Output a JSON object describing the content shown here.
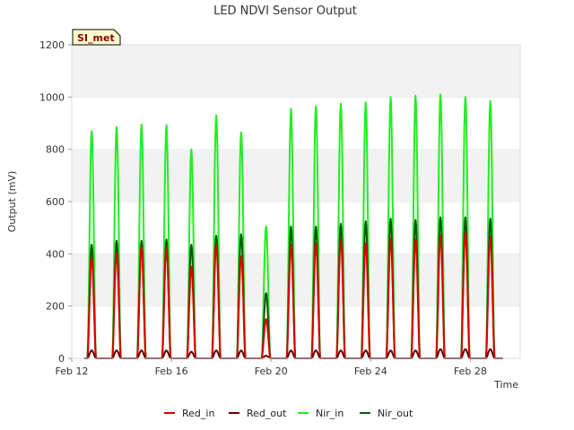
{
  "chart_data": {
    "type": "line",
    "title": "LED NDVI Sensor Output",
    "xlabel": "Time",
    "ylabel": "Output (mV)",
    "site_tag": "SI_met",
    "xlim": [
      12,
      30
    ],
    "ylim": [
      0,
      1200
    ],
    "x_ticks": [
      {
        "value": 12,
        "label": "Feb 12"
      },
      {
        "value": 16,
        "label": "Feb 16"
      },
      {
        "value": 20,
        "label": "Feb 20"
      },
      {
        "value": 24,
        "label": "Feb 24"
      },
      {
        "value": 28,
        "label": "Feb 28"
      }
    ],
    "y_ticks": [
      {
        "value": 0,
        "label": "0"
      },
      {
        "value": 200,
        "label": "200"
      },
      {
        "value": 400,
        "label": "400"
      },
      {
        "value": 600,
        "label": "600"
      },
      {
        "value": 800,
        "label": "800"
      },
      {
        "value": 1000,
        "label": "1000"
      },
      {
        "value": 1200,
        "label": "1200"
      }
    ],
    "colors": {
      "Red_in": "#dd0000",
      "Red_out": "#660000",
      "Nir_in": "#22ee22",
      "Nir_out": "#115511"
    },
    "series": [
      {
        "name": "Nir_in",
        "color": "#22ee22",
        "daily_peaks": [
          {
            "day": 12.8,
            "peak": 870
          },
          {
            "day": 13.8,
            "peak": 885
          },
          {
            "day": 14.8,
            "peak": 895
          },
          {
            "day": 15.8,
            "peak": 893
          },
          {
            "day": 16.8,
            "peak": 800
          },
          {
            "day": 17.8,
            "peak": 930
          },
          {
            "day": 18.8,
            "peak": 865
          },
          {
            "day": 19.8,
            "peak": 505
          },
          {
            "day": 20.8,
            "peak": 955
          },
          {
            "day": 21.8,
            "peak": 965
          },
          {
            "day": 22.8,
            "peak": 975
          },
          {
            "day": 23.8,
            "peak": 980
          },
          {
            "day": 24.8,
            "peak": 1000
          },
          {
            "day": 25.8,
            "peak": 1005
          },
          {
            "day": 26.8,
            "peak": 1010
          },
          {
            "day": 27.8,
            "peak": 1000
          },
          {
            "day": 28.8,
            "peak": 985
          }
        ]
      },
      {
        "name": "Nir_out",
        "color": "#115511",
        "daily_peaks": [
          {
            "day": 12.8,
            "peak": 435
          },
          {
            "day": 13.8,
            "peak": 450
          },
          {
            "day": 14.8,
            "peak": 450
          },
          {
            "day": 15.8,
            "peak": 455
          },
          {
            "day": 16.8,
            "peak": 435
          },
          {
            "day": 17.8,
            "peak": 470
          },
          {
            "day": 18.8,
            "peak": 475
          },
          {
            "day": 19.8,
            "peak": 250
          },
          {
            "day": 20.8,
            "peak": 505
          },
          {
            "day": 21.8,
            "peak": 505
          },
          {
            "day": 22.8,
            "peak": 515
          },
          {
            "day": 23.8,
            "peak": 525
          },
          {
            "day": 24.8,
            "peak": 535
          },
          {
            "day": 25.8,
            "peak": 530
          },
          {
            "day": 26.8,
            "peak": 540
          },
          {
            "day": 27.8,
            "peak": 540
          },
          {
            "day": 28.8,
            "peak": 535
          }
        ]
      },
      {
        "name": "Red_in",
        "color": "#dd0000",
        "daily_peaks": [
          {
            "day": 12.8,
            "peak": 385
          },
          {
            "day": 13.8,
            "peak": 405
          },
          {
            "day": 14.8,
            "peak": 425
          },
          {
            "day": 15.8,
            "peak": 425
          },
          {
            "day": 16.8,
            "peak": 350
          },
          {
            "day": 17.8,
            "peak": 435
          },
          {
            "day": 18.8,
            "peak": 390
          },
          {
            "day": 19.8,
            "peak": 150
          },
          {
            "day": 20.8,
            "peak": 435
          },
          {
            "day": 21.8,
            "peak": 440
          },
          {
            "day": 22.8,
            "peak": 455
          },
          {
            "day": 23.8,
            "peak": 440
          },
          {
            "day": 24.8,
            "peak": 460
          },
          {
            "day": 25.8,
            "peak": 455
          },
          {
            "day": 26.8,
            "peak": 470
          },
          {
            "day": 27.8,
            "peak": 480
          },
          {
            "day": 28.8,
            "peak": 465
          }
        ]
      },
      {
        "name": "Red_out",
        "color": "#660000",
        "daily_peaks": [
          {
            "day": 12.8,
            "peak": 30
          },
          {
            "day": 13.8,
            "peak": 30
          },
          {
            "day": 14.8,
            "peak": 30
          },
          {
            "day": 15.8,
            "peak": 30
          },
          {
            "day": 16.8,
            "peak": 25
          },
          {
            "day": 17.8,
            "peak": 30
          },
          {
            "day": 18.8,
            "peak": 30
          },
          {
            "day": 19.8,
            "peak": 10
          },
          {
            "day": 20.8,
            "peak": 30
          },
          {
            "day": 21.8,
            "peak": 30
          },
          {
            "day": 22.8,
            "peak": 30
          },
          {
            "day": 23.8,
            "peak": 30
          },
          {
            "day": 24.8,
            "peak": 30
          },
          {
            "day": 25.8,
            "peak": 30
          },
          {
            "day": 26.8,
            "peak": 35
          },
          {
            "day": 27.8,
            "peak": 35
          },
          {
            "day": 28.8,
            "peak": 35
          }
        ]
      }
    ],
    "legend": [
      "Red_in",
      "Red_out",
      "Nir_in",
      "Nir_out"
    ],
    "legend_position": "bottom-center",
    "grid": true
  }
}
